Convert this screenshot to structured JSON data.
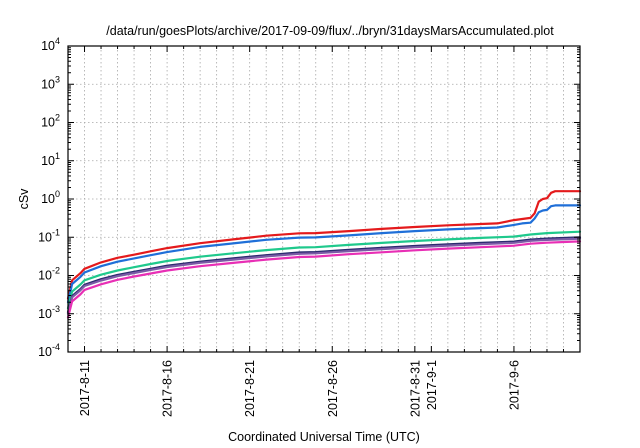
{
  "chart_data": {
    "type": "line",
    "title": "/data/run/goesPlots/archive/2017-09-09/flux/../bryn/31daysMarsAccumulated.plot",
    "xlabel": "Coordinated Universal Time (UTC)",
    "ylabel": "cSv",
    "yscale": "log",
    "ylim": [
      0.0001,
      10000
    ],
    "xlim": [
      "2017-08-10",
      "2017-09-10"
    ],
    "grid": true,
    "y_ticks": [
      {
        "base": "10",
        "exp": "-4",
        "value": 0.0001
      },
      {
        "base": "10",
        "exp": "-3",
        "value": 0.001
      },
      {
        "base": "10",
        "exp": "-2",
        "value": 0.01
      },
      {
        "base": "10",
        "exp": "-1",
        "value": 0.1
      },
      {
        "base": "10",
        "exp": "0",
        "value": 1
      },
      {
        "base": "10",
        "exp": "1",
        "value": 10
      },
      {
        "base": "10",
        "exp": "2",
        "value": 100
      },
      {
        "base": "10",
        "exp": "3",
        "value": 1000
      },
      {
        "base": "10",
        "exp": "4",
        "value": 10000
      }
    ],
    "x_ticks": [
      {
        "label": "2017-8-11",
        "date": "2017-08-11"
      },
      {
        "label": "2017-8-16",
        "date": "2017-08-16"
      },
      {
        "label": "2017-8-21",
        "date": "2017-08-21"
      },
      {
        "label": "2017-8-26",
        "date": "2017-08-26"
      },
      {
        "label": "2017-8-31",
        "date": "2017-08-31"
      },
      {
        "label": "2017-9-1",
        "date": "2017-09-01"
      },
      {
        "label": "2017-9-6",
        "date": "2017-09-06"
      }
    ],
    "x_minor_dates": [
      "2017-08-12",
      "2017-08-13",
      "2017-08-14",
      "2017-08-15",
      "2017-08-17",
      "2017-08-18",
      "2017-08-19",
      "2017-08-20",
      "2017-08-22",
      "2017-08-23",
      "2017-08-24",
      "2017-08-25",
      "2017-08-27",
      "2017-08-28",
      "2017-08-29",
      "2017-08-30",
      "2017-09-02",
      "2017-09-03",
      "2017-09-04",
      "2017-09-05",
      "2017-09-07",
      "2017-09-08",
      "2017-09-09"
    ],
    "series": [
      {
        "color": "#e41a1c",
        "x": [
          "2017-08-10",
          "2017-08-10T06:00",
          "2017-08-10T18:00",
          "2017-08-11",
          "2017-08-12",
          "2017-08-13",
          "2017-08-14",
          "2017-08-15",
          "2017-08-16",
          "2017-08-18",
          "2017-08-20",
          "2017-08-22",
          "2017-08-24",
          "2017-08-25",
          "2017-08-27",
          "2017-08-29",
          "2017-08-31",
          "2017-09-02",
          "2017-09-04",
          "2017-09-05",
          "2017-09-06",
          "2017-09-06T12:00",
          "2017-09-07",
          "2017-09-07T06:00",
          "2017-09-07T12:00",
          "2017-09-07T18:00",
          "2017-09-08",
          "2017-09-08T06:00",
          "2017-09-08T12:00",
          "2017-09-10"
        ],
        "y": [
          0.0025,
          0.0075,
          0.0115,
          0.015,
          0.022,
          0.029,
          0.035,
          0.043,
          0.052,
          0.07,
          0.088,
          0.11,
          0.127,
          0.128,
          0.145,
          0.165,
          0.185,
          0.205,
          0.222,
          0.23,
          0.28,
          0.3,
          0.32,
          0.42,
          0.85,
          1.0,
          1.05,
          1.45,
          1.6,
          1.6
        ]
      },
      {
        "color": "#1f6fd8",
        "x": [
          "2017-08-10",
          "2017-08-10T06:00",
          "2017-08-10T18:00",
          "2017-08-11",
          "2017-08-12",
          "2017-08-13",
          "2017-08-14",
          "2017-08-15",
          "2017-08-16",
          "2017-08-18",
          "2017-08-20",
          "2017-08-22",
          "2017-08-24",
          "2017-08-25",
          "2017-08-27",
          "2017-08-29",
          "2017-08-31",
          "2017-09-02",
          "2017-09-04",
          "2017-09-05",
          "2017-09-06",
          "2017-09-06T12:00",
          "2017-09-07",
          "2017-09-07T06:00",
          "2017-09-07T12:00",
          "2017-09-07T18:00",
          "2017-09-08",
          "2017-09-08T06:00",
          "2017-09-08T12:00",
          "2017-09-10"
        ],
        "y": [
          0.002,
          0.006,
          0.0092,
          0.012,
          0.0175,
          0.023,
          0.028,
          0.034,
          0.041,
          0.056,
          0.069,
          0.086,
          0.098,
          0.099,
          0.112,
          0.128,
          0.145,
          0.16,
          0.173,
          0.18,
          0.21,
          0.23,
          0.24,
          0.31,
          0.45,
          0.5,
          0.52,
          0.65,
          0.68,
          0.68
        ]
      },
      {
        "color": "#1fc98c",
        "x": [
          "2017-08-10",
          "2017-08-10T06:00",
          "2017-08-10T18:00",
          "2017-08-11",
          "2017-08-12",
          "2017-08-13",
          "2017-08-14",
          "2017-08-15",
          "2017-08-16",
          "2017-08-18",
          "2017-08-20",
          "2017-08-22",
          "2017-08-24",
          "2017-08-25",
          "2017-08-27",
          "2017-08-29",
          "2017-08-31",
          "2017-09-02",
          "2017-09-04",
          "2017-09-06",
          "2017-09-07",
          "2017-09-08",
          "2017-09-10"
        ],
        "y": [
          0.0014,
          0.0038,
          0.0058,
          0.0075,
          0.0105,
          0.0135,
          0.0165,
          0.02,
          0.024,
          0.031,
          0.038,
          0.046,
          0.054,
          0.055,
          0.063,
          0.071,
          0.08,
          0.088,
          0.096,
          0.104,
          0.118,
          0.128,
          0.14
        ]
      },
      {
        "color": "#2a2a6e",
        "x": [
          "2017-08-10",
          "2017-08-10T06:00",
          "2017-08-10T18:00",
          "2017-08-11",
          "2017-08-12",
          "2017-08-13",
          "2017-08-14",
          "2017-08-15",
          "2017-08-16",
          "2017-08-18",
          "2017-08-20",
          "2017-08-22",
          "2017-08-24",
          "2017-08-25",
          "2017-08-27",
          "2017-08-29",
          "2017-08-31",
          "2017-09-02",
          "2017-09-04",
          "2017-09-06",
          "2017-09-07",
          "2017-09-08",
          "2017-09-10"
        ],
        "y": [
          0.0011,
          0.0029,
          0.0044,
          0.0057,
          0.008,
          0.0103,
          0.0125,
          0.015,
          0.018,
          0.023,
          0.028,
          0.034,
          0.04,
          0.041,
          0.047,
          0.053,
          0.059,
          0.065,
          0.071,
          0.077,
          0.087,
          0.092,
          0.1
        ]
      },
      {
        "color": "#7b5aa6",
        "x": [
          "2017-08-10",
          "2017-08-10T06:00",
          "2017-08-10T18:00",
          "2017-08-11",
          "2017-08-12",
          "2017-08-13",
          "2017-08-14",
          "2017-08-15",
          "2017-08-16",
          "2017-08-18",
          "2017-08-20",
          "2017-08-22",
          "2017-08-24",
          "2017-08-25",
          "2017-08-27",
          "2017-08-29",
          "2017-08-31",
          "2017-09-02",
          "2017-09-04",
          "2017-09-06",
          "2017-09-07",
          "2017-09-08",
          "2017-09-10"
        ],
        "y": [
          0.001,
          0.0027,
          0.0041,
          0.0053,
          0.0074,
          0.0096,
          0.0116,
          0.014,
          0.0167,
          0.0215,
          0.026,
          0.0315,
          0.037,
          0.038,
          0.0435,
          0.049,
          0.055,
          0.0605,
          0.066,
          0.0715,
          0.081,
          0.0855,
          0.092
        ]
      },
      {
        "color": "#e82fb5",
        "x": [
          "2017-08-10",
          "2017-08-10T06:00",
          "2017-08-10T18:00",
          "2017-08-11",
          "2017-08-12",
          "2017-08-13",
          "2017-08-14",
          "2017-08-15",
          "2017-08-16",
          "2017-08-18",
          "2017-08-20",
          "2017-08-22",
          "2017-08-24",
          "2017-08-25",
          "2017-08-27",
          "2017-08-29",
          "2017-08-31",
          "2017-09-02",
          "2017-09-04",
          "2017-09-06",
          "2017-09-07",
          "2017-09-08",
          "2017-09-10"
        ],
        "y": [
          0.0008,
          0.0021,
          0.0032,
          0.0042,
          0.0059,
          0.0077,
          0.0094,
          0.0113,
          0.0135,
          0.0175,
          0.0213,
          0.026,
          0.0305,
          0.0312,
          0.036,
          0.0405,
          0.0455,
          0.0505,
          0.055,
          0.06,
          0.068,
          0.072,
          0.078
        ]
      }
    ]
  }
}
